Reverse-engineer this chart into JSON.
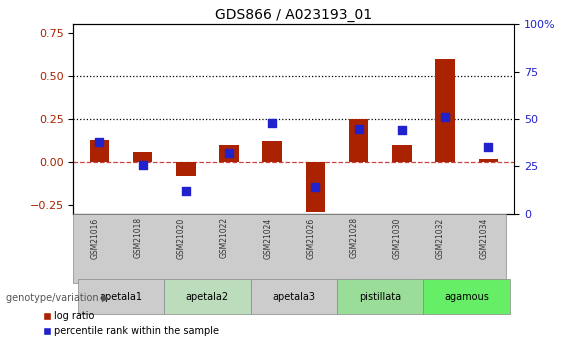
{
  "title": "GDS866 / A023193_01",
  "samples": [
    "GSM21016",
    "GSM21018",
    "GSM21020",
    "GSM21022",
    "GSM21024",
    "GSM21026",
    "GSM21028",
    "GSM21030",
    "GSM21032",
    "GSM21034"
  ],
  "log_ratio": [
    0.13,
    0.06,
    -0.08,
    0.1,
    0.12,
    -0.29,
    0.25,
    0.1,
    0.6,
    0.02
  ],
  "percentile_rank": [
    38,
    26,
    12,
    32,
    48,
    14,
    45,
    44,
    51,
    35
  ],
  "bar_color": "#aa2200",
  "dot_color": "#2222cc",
  "left_ylim": [
    -0.3,
    0.8
  ],
  "right_ylim": [
    0,
    100
  ],
  "left_yticks": [
    -0.25,
    0.0,
    0.25,
    0.5,
    0.75
  ],
  "right_yticks": [
    0,
    25,
    50,
    75,
    100
  ],
  "hlines": [
    0.0,
    0.25,
    0.5
  ],
  "hline_styles": [
    "dashed",
    "dotted",
    "dotted"
  ],
  "hline_colors": [
    "#cc4444",
    "#000000",
    "#000000"
  ],
  "genotype_groups": [
    {
      "label": "apetala1",
      "indices": [
        0,
        1
      ],
      "color": "#cccccc"
    },
    {
      "label": "apetala2",
      "indices": [
        2,
        3
      ],
      "color": "#bbddbb"
    },
    {
      "label": "apetala3",
      "indices": [
        4,
        5
      ],
      "color": "#cccccc"
    },
    {
      "label": "pistillata",
      "indices": [
        6,
        7
      ],
      "color": "#99dd99"
    },
    {
      "label": "agamous",
      "indices": [
        8,
        9
      ],
      "color": "#66ee66"
    }
  ],
  "genotype_label": "genotype/variation",
  "legend_bar_label": "log ratio",
  "legend_dot_label": "percentile rank within the sample",
  "bar_width": 0.45,
  "dot_size": 28,
  "background_color": "#ffffff"
}
